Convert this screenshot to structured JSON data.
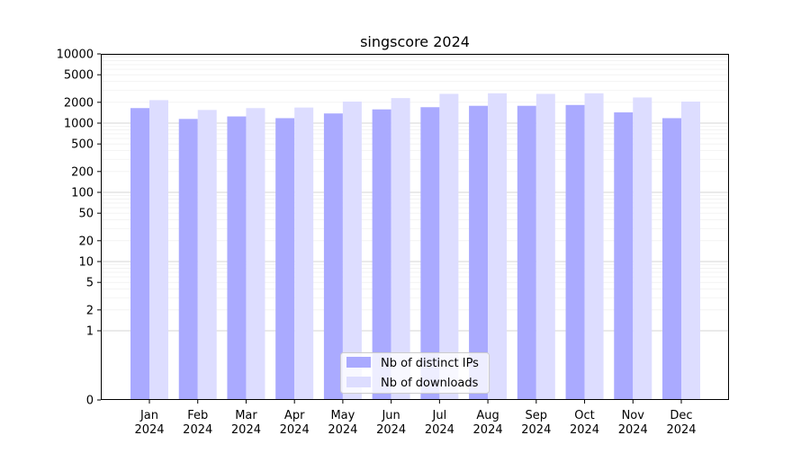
{
  "chart_data": {
    "type": "bar",
    "title": "singscore 2024",
    "xlabel": "",
    "ylabel": "",
    "yscale": "symlog",
    "ylim": [
      0,
      10000
    ],
    "y_ticks": [
      0,
      1,
      2,
      5,
      10,
      20,
      50,
      100,
      200,
      500,
      1000,
      2000,
      5000,
      10000
    ],
    "y_tick_labels": [
      "0",
      "1",
      "2",
      "5",
      "10",
      "20",
      "50",
      "100",
      "200",
      "500",
      "1000",
      "2000",
      "5000",
      "10000"
    ],
    "grid": true,
    "legend_position": "bottom-center",
    "categories": [
      "Jan\n2024",
      "Feb\n2024",
      "Mar\n2024",
      "Apr\n2024",
      "May\n2024",
      "Jun\n2024",
      "Jul\n2024",
      "Aug\n2024",
      "Sep\n2024",
      "Oct\n2024",
      "Nov\n2024",
      "Dec\n2024"
    ],
    "series": [
      {
        "name": "Nb of distinct IPs",
        "color": "#aaaaff",
        "values": [
          1650,
          1150,
          1250,
          1180,
          1380,
          1580,
          1700,
          1780,
          1780,
          1830,
          1430,
          1180
        ]
      },
      {
        "name": "Nb of downloads",
        "color": "#ddddff",
        "values": [
          2150,
          1550,
          1650,
          1680,
          2050,
          2300,
          2650,
          2700,
          2650,
          2700,
          2350,
          2050
        ]
      }
    ]
  }
}
